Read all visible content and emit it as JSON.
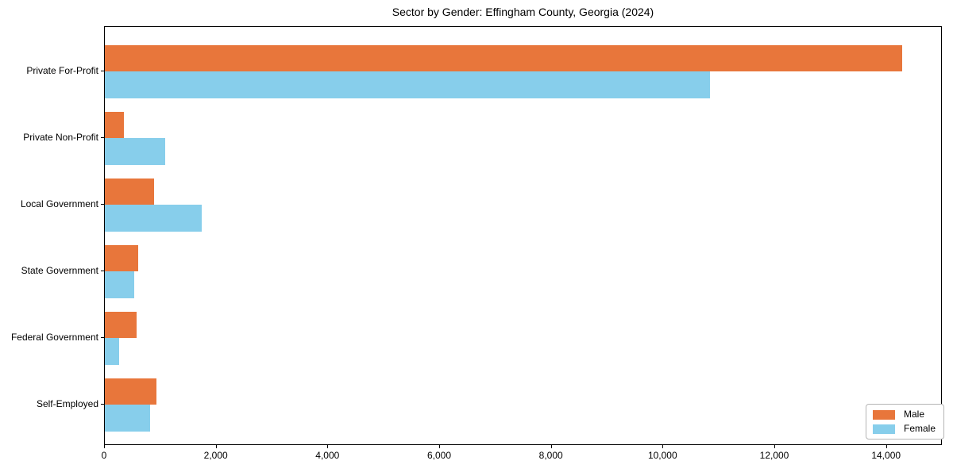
{
  "chart_data": {
    "type": "bar",
    "orientation": "horizontal",
    "title": "Sector by Gender: Effingham County, Georgia (2024)",
    "categories": [
      "Private For-Profit",
      "Private Non-Profit",
      "Local Government",
      "State Government",
      "Federal Government",
      "Self-Employed"
    ],
    "series": [
      {
        "name": "Male",
        "color": "#e8763b",
        "values": [
          14270,
          345,
          880,
          590,
          565,
          925
        ]
      },
      {
        "name": "Female",
        "color": "#87ceeb",
        "values": [
          10840,
          1080,
          1740,
          520,
          260,
          815
        ]
      }
    ],
    "xlabel": "",
    "ylabel": "",
    "xlim": [
      0,
      15000
    ],
    "xticks": [
      0,
      2000,
      4000,
      6000,
      8000,
      10000,
      12000,
      14000
    ],
    "xtick_labels": [
      "0",
      "2,000",
      "4,000",
      "6,000",
      "8,000",
      "10,000",
      "12,000",
      "14,000"
    ],
    "grid": false,
    "legend_position": "lower right"
  }
}
